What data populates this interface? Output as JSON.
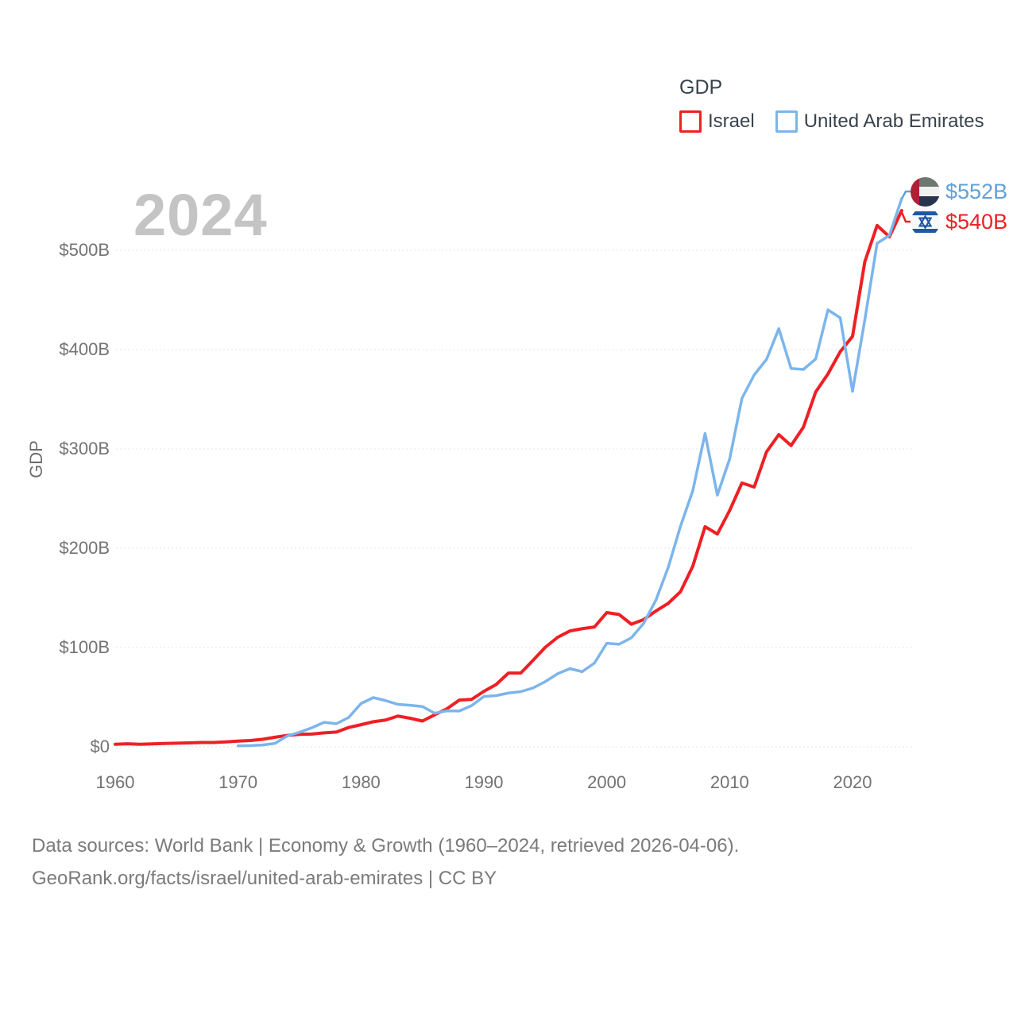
{
  "watermark": "2024",
  "legend": {
    "title": "GDP",
    "items": [
      {
        "label": "Israel",
        "color": "#ee2024"
      },
      {
        "label": "United Arab Emirates",
        "color": "#7cb5ec"
      }
    ]
  },
  "end_labels": [
    {
      "label": "$552B",
      "color": "#61a0d8",
      "flag": "uae-flag-icon"
    },
    {
      "label": "$540B",
      "color": "#ee2024",
      "flag": "israel-flag-icon"
    }
  ],
  "footer": {
    "line1": "Data sources: World Bank | Economy & Growth (1960–2024, retrieved 2026-04-06).",
    "line2": "GeoRank.org/facts/israel/united-arab-emirates | CC BY"
  },
  "chart_data": {
    "type": "line",
    "title": "GDP",
    "xlabel": "",
    "ylabel": "GDP",
    "xlim": [
      1960,
      2024
    ],
    "ylim": [
      0,
      560
    ],
    "grid": "horizontal",
    "legend_position": "top-right",
    "x_ticks": [
      1960,
      1970,
      1980,
      1990,
      2000,
      2010,
      2020
    ],
    "y_ticks": [
      {
        "value": 0,
        "label": "$0"
      },
      {
        "value": 100,
        "label": "$100B"
      },
      {
        "value": 200,
        "label": "$200B"
      },
      {
        "value": 300,
        "label": "$300B"
      },
      {
        "value": 400,
        "label": "$400B"
      },
      {
        "value": 500,
        "label": "$500B"
      }
    ],
    "y_unit": "billion USD",
    "x": [
      1960,
      1961,
      1962,
      1963,
      1964,
      1965,
      1966,
      1967,
      1968,
      1969,
      1970,
      1971,
      1972,
      1973,
      1974,
      1975,
      1976,
      1977,
      1978,
      1979,
      1980,
      1981,
      1982,
      1983,
      1984,
      1985,
      1986,
      1987,
      1988,
      1989,
      1990,
      1991,
      1992,
      1993,
      1994,
      1995,
      1996,
      1997,
      1998,
      1999,
      2000,
      2001,
      2002,
      2003,
      2004,
      2005,
      2006,
      2007,
      2008,
      2009,
      2010,
      2011,
      2012,
      2013,
      2014,
      2015,
      2016,
      2017,
      2018,
      2019,
      2020,
      2021,
      2022,
      2023,
      2024
    ],
    "series": [
      {
        "name": "Israel",
        "color": "#ee2024",
        "values": [
          2.6,
          3.1,
          2.6,
          3.0,
          3.4,
          3.7,
          4.0,
          4.4,
          4.4,
          5.0,
          5.8,
          6.4,
          7.6,
          9.7,
          11.5,
          12.6,
          12.9,
          14.1,
          14.9,
          19.5,
          22.3,
          25.3,
          27.0,
          31.0,
          28.8,
          26.0,
          32.3,
          38.4,
          47.1,
          47.8,
          55.9,
          62.8,
          74.3,
          74.3,
          87.1,
          100.3,
          110.3,
          116.7,
          119.0,
          120.7,
          135.2,
          133.3,
          123.5,
          128.1,
          136.8,
          144.5,
          156.2,
          181.9,
          221.7,
          214.3,
          238.0,
          265.7,
          261.6,
          297.0,
          314.4,
          303.4,
          321.8,
          357.3,
          375.5,
          397.9,
          413.3,
          488.5,
          525.0,
          513.6,
          540.0
        ]
      },
      {
        "name": "United Arab Emirates",
        "color": "#7cb5ec",
        "values": [
          null,
          null,
          null,
          null,
          null,
          null,
          null,
          null,
          null,
          null,
          1.0,
          1.3,
          1.9,
          3.5,
          11.0,
          14.7,
          19.2,
          24.7,
          23.3,
          29.6,
          43.6,
          49.6,
          46.6,
          42.8,
          41.9,
          40.6,
          33.9,
          36.3,
          36.1,
          41.5,
          50.7,
          51.6,
          54.2,
          55.6,
          59.3,
          65.7,
          73.6,
          78.8,
          75.7,
          84.4,
          104.3,
          103.3,
          109.8,
          124.3,
          147.8,
          180.6,
          222.1,
          257.9,
          315.5,
          253.5,
          289.8,
          350.9,
          374.6,
          390.1,
          421.1,
          381.0,
          380.0,
          390.5,
          440.0,
          432.0,
          358.0,
          430.0,
          507.0,
          515.0,
          552.0
        ]
      }
    ],
    "final_values": {
      "United Arab Emirates": "$552B",
      "Israel": "$540B"
    }
  }
}
